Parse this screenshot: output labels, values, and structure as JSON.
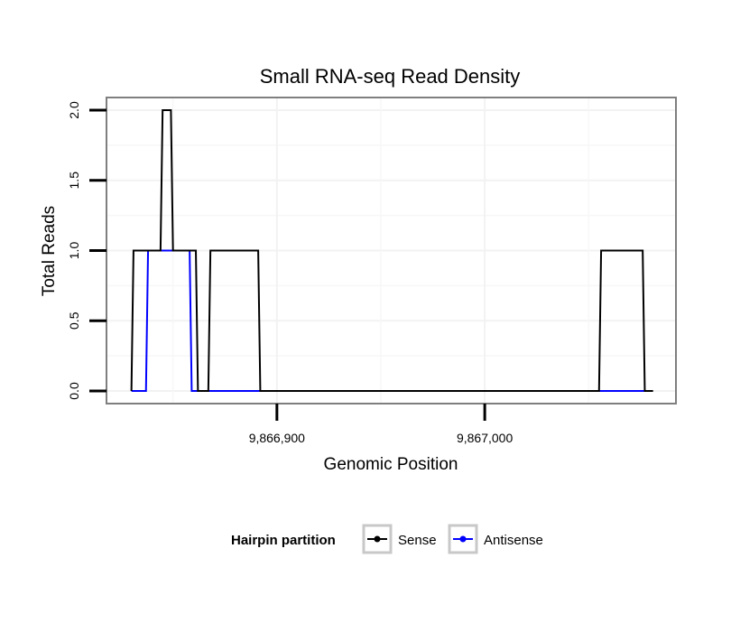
{
  "chart_data": {
    "type": "line",
    "title": "Small RNA-seq Read Density",
    "xlabel": "Genomic Position",
    "ylabel": "Total Reads",
    "xlim": [
      9866818,
      9867092
    ],
    "ylim": [
      -0.09,
      2.09
    ],
    "x_ticks": [
      9866900,
      9867000
    ],
    "x_tick_labels": [
      "9,866,900",
      "9,867,000"
    ],
    "y_ticks": [
      0,
      0.5,
      1,
      1.5,
      2
    ],
    "y_tick_labels": [
      "0.0",
      "0.5",
      "1.0",
      "1.5",
      "2.0"
    ],
    "grid": true,
    "legend": {
      "title": "Hairpin partition",
      "position": "bottom",
      "entries": [
        "Sense",
        "Antisense"
      ]
    },
    "series": [
      {
        "name": "Sense",
        "color": "#000000",
        "x": [
          9866830,
          9866831,
          9866844,
          9866845,
          9866849,
          9866850,
          9866861,
          9866862,
          9866864,
          9866867,
          9866868,
          9866891,
          9866892,
          9867055,
          9867056,
          9867076,
          9867077,
          9867081
        ],
        "y": [
          0,
          1,
          1,
          2,
          2,
          1,
          1,
          0,
          0,
          0,
          1,
          1,
          0,
          0,
          1,
          1,
          0,
          0
        ]
      },
      {
        "name": "Antisense",
        "color": "#0000ff",
        "x": [
          9866830,
          9866837,
          9866838,
          9866858,
          9866859,
          9866892,
          9867055,
          9867077
        ],
        "y": [
          0,
          0,
          1,
          1,
          0,
          0,
          0,
          0
        ]
      }
    ]
  }
}
